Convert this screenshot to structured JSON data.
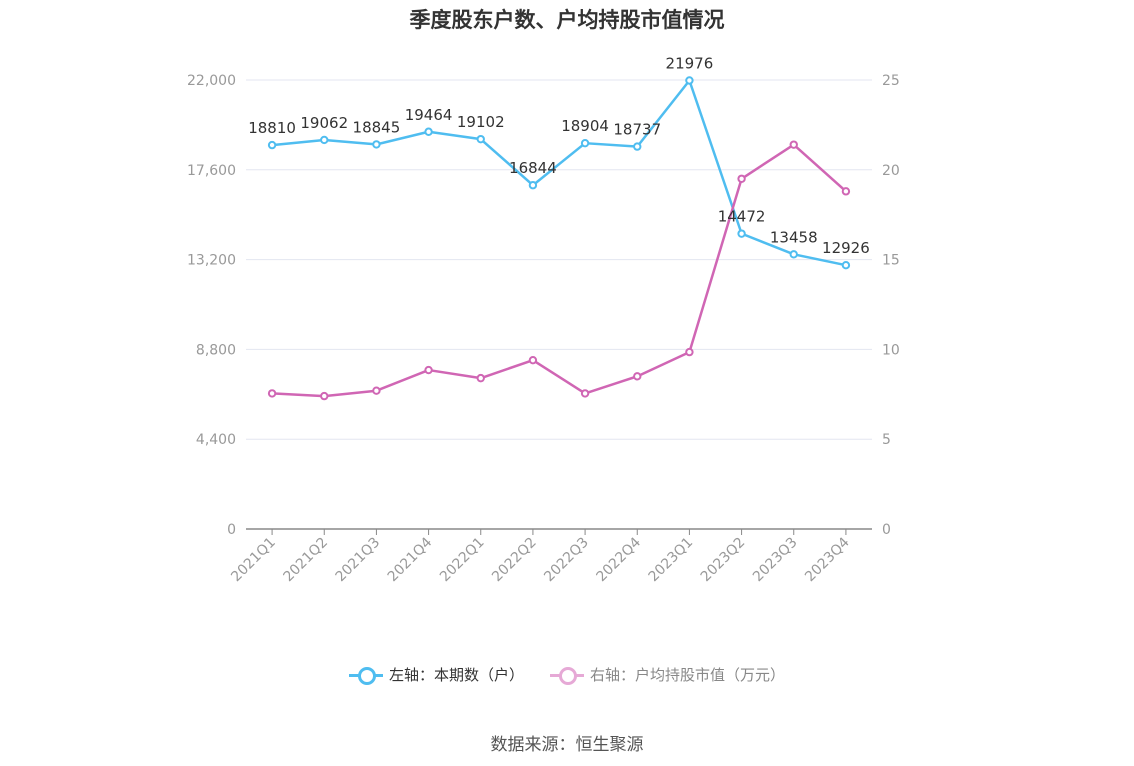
{
  "title": "季度股东户数、户均持股市值情况",
  "source": "数据来源：恒生聚源",
  "legend": {
    "left_label": "左轴：本期数（户）",
    "right_label": "右轴：户均持股市值（万元）"
  },
  "colors": {
    "left": "#4fbdf0",
    "right": "#d066b4",
    "right_legend": "#e6a9d6",
    "grid": "#e3e6f0",
    "axis": "#888888"
  },
  "chart_data": {
    "type": "line",
    "categories": [
      "2021Q1",
      "2021Q2",
      "2021Q3",
      "2021Q4",
      "2022Q1",
      "2022Q2",
      "2022Q3",
      "2022Q4",
      "2023Q1",
      "2023Q2",
      "2023Q3",
      "2023Q4"
    ],
    "series": [
      {
        "name": "左轴：本期数（户）",
        "axis": "left",
        "values": [
          18810,
          19062,
          18845,
          19464,
          19102,
          16844,
          18904,
          18737,
          21976,
          14472,
          13458,
          12926
        ],
        "show_labels": true
      },
      {
        "name": "右轴：户均持股市值（万元）",
        "axis": "right",
        "values": [
          7.55,
          7.4,
          7.7,
          8.85,
          8.4,
          9.4,
          7.55,
          8.5,
          9.85,
          19.5,
          21.4,
          18.8
        ],
        "show_labels": false
      }
    ],
    "y_left": {
      "min": 0,
      "max": 22000,
      "ticks": [
        "0",
        "4,400",
        "8,800",
        "13,200",
        "17,600",
        "22,000"
      ]
    },
    "y_right": {
      "min": 0,
      "max": 25,
      "ticks": [
        "0",
        "5",
        "10",
        "15",
        "20",
        "25"
      ]
    },
    "grid": true,
    "legend_position": "bottom"
  }
}
